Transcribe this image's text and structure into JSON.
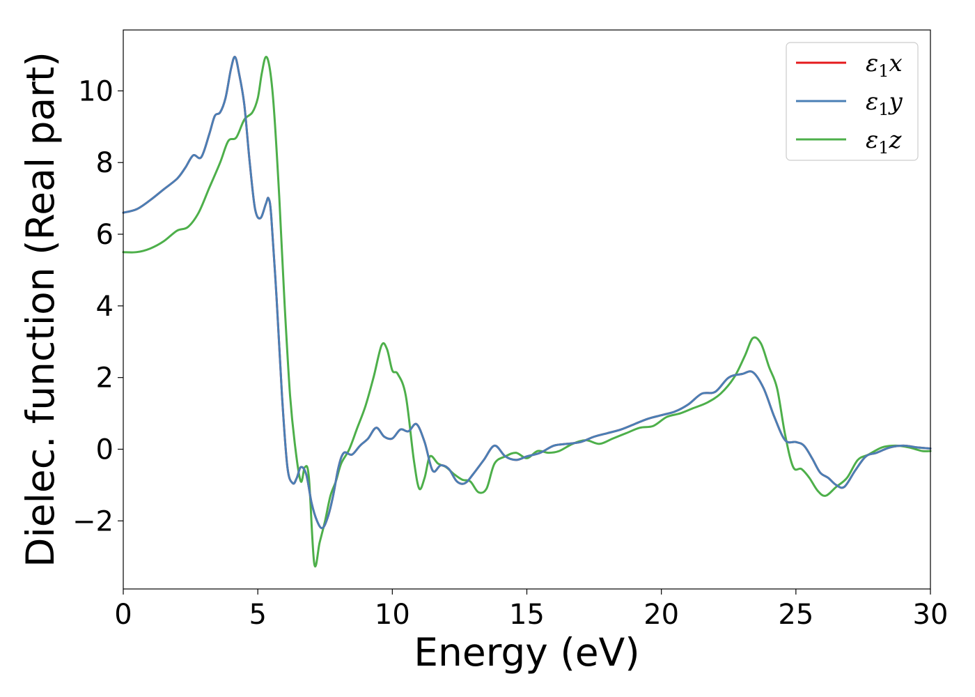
{
  "chart_data": {
    "type": "line",
    "xlabel": "Energy (eV)",
    "ylabel": "Dielec. function (Real part)",
    "xlim": [
      0,
      30
    ],
    "ylim": [
      -3.9,
      11.7
    ],
    "xticks": [
      0,
      5,
      10,
      15,
      20,
      25,
      30
    ],
    "xtick_labels": [
      "0",
      "5",
      "10",
      "15",
      "20",
      "25",
      "30"
    ],
    "yticks": [
      -2,
      0,
      2,
      4,
      6,
      8,
      10
    ],
    "ytick_labels": [
      "−2",
      "0",
      "2",
      "4",
      "6",
      "8",
      "10"
    ],
    "grid": false,
    "legend_position": "top-right",
    "series": [
      {
        "name": "ε₁x",
        "legend_main": "ε",
        "legend_sub": "1",
        "legend_var": "x",
        "color": "#e41a1c",
        "x": [
          0,
          0.5,
          1.0,
          1.5,
          2.0,
          2.3,
          2.6,
          2.9,
          3.2,
          3.4,
          3.6,
          3.8,
          4.0,
          4.15,
          4.3,
          4.5,
          4.7,
          4.9,
          5.1,
          5.3,
          5.4,
          5.5,
          5.7,
          5.9,
          6.1,
          6.3,
          6.45,
          6.6,
          6.8,
          7.0,
          7.2,
          7.4,
          7.6,
          7.8,
          8.0,
          8.2,
          8.5,
          8.8,
          9.1,
          9.4,
          9.7,
          10.0,
          10.3,
          10.6,
          10.9,
          11.2,
          11.5,
          11.8,
          12.1,
          12.4,
          12.7,
          13.0,
          13.4,
          13.8,
          14.2,
          14.6,
          15.0,
          15.5,
          16.0,
          16.5,
          17.0,
          17.5,
          18.0,
          18.5,
          19.0,
          19.5,
          20.0,
          20.5,
          21.0,
          21.5,
          22.0,
          22.5,
          23.0,
          23.4,
          23.8,
          24.2,
          24.6,
          25.0,
          25.3,
          25.6,
          25.9,
          26.2,
          26.5,
          26.8,
          27.2,
          27.6,
          28.0,
          28.5,
          29.0,
          29.5,
          30.0
        ],
        "y": [
          6.6,
          6.7,
          6.95,
          7.25,
          7.55,
          7.85,
          8.2,
          8.15,
          8.8,
          9.3,
          9.4,
          9.8,
          10.6,
          10.95,
          10.5,
          9.6,
          8.0,
          6.7,
          6.45,
          6.85,
          7.0,
          6.5,
          4.2,
          1.5,
          -0.5,
          -0.95,
          -0.8,
          -0.5,
          -0.7,
          -1.5,
          -2.0,
          -2.2,
          -1.9,
          -1.3,
          -0.5,
          -0.1,
          -0.15,
          0.1,
          0.3,
          0.6,
          0.35,
          0.3,
          0.55,
          0.5,
          0.7,
          0.2,
          -0.6,
          -0.45,
          -0.55,
          -0.9,
          -0.95,
          -0.7,
          -0.3,
          0.1,
          -0.2,
          -0.3,
          -0.2,
          -0.1,
          0.1,
          0.15,
          0.2,
          0.35,
          0.45,
          0.55,
          0.7,
          0.85,
          0.95,
          1.05,
          1.25,
          1.55,
          1.6,
          2.0,
          2.1,
          2.15,
          1.7,
          0.9,
          0.25,
          0.2,
          0.1,
          -0.25,
          -0.65,
          -0.8,
          -1.0,
          -1.05,
          -0.6,
          -0.2,
          -0.1,
          0.05,
          0.1,
          0.05,
          0.02
        ]
      },
      {
        "name": "ε₁y",
        "legend_main": "ε",
        "legend_sub": "1",
        "legend_var": "y",
        "color": "#4a7fb5",
        "x": [
          0,
          0.5,
          1.0,
          1.5,
          2.0,
          2.3,
          2.6,
          2.9,
          3.2,
          3.4,
          3.6,
          3.8,
          4.0,
          4.15,
          4.3,
          4.5,
          4.7,
          4.9,
          5.1,
          5.3,
          5.4,
          5.5,
          5.7,
          5.9,
          6.1,
          6.3,
          6.45,
          6.6,
          6.8,
          7.0,
          7.2,
          7.4,
          7.6,
          7.8,
          8.0,
          8.2,
          8.5,
          8.8,
          9.1,
          9.4,
          9.7,
          10.0,
          10.3,
          10.6,
          10.9,
          11.2,
          11.5,
          11.8,
          12.1,
          12.4,
          12.7,
          13.0,
          13.4,
          13.8,
          14.2,
          14.6,
          15.0,
          15.5,
          16.0,
          16.5,
          17.0,
          17.5,
          18.0,
          18.5,
          19.0,
          19.5,
          20.0,
          20.5,
          21.0,
          21.5,
          22.0,
          22.5,
          23.0,
          23.4,
          23.8,
          24.2,
          24.6,
          25.0,
          25.3,
          25.6,
          25.9,
          26.2,
          26.5,
          26.8,
          27.2,
          27.6,
          28.0,
          28.5,
          29.0,
          29.5,
          30.0
        ],
        "y": [
          6.6,
          6.7,
          6.95,
          7.25,
          7.55,
          7.85,
          8.2,
          8.15,
          8.8,
          9.3,
          9.4,
          9.8,
          10.6,
          10.95,
          10.5,
          9.6,
          8.0,
          6.7,
          6.45,
          6.85,
          7.0,
          6.5,
          4.2,
          1.5,
          -0.5,
          -0.95,
          -0.8,
          -0.5,
          -0.7,
          -1.5,
          -2.0,
          -2.2,
          -1.9,
          -1.3,
          -0.5,
          -0.1,
          -0.15,
          0.1,
          0.3,
          0.6,
          0.35,
          0.3,
          0.55,
          0.5,
          0.7,
          0.2,
          -0.6,
          -0.45,
          -0.55,
          -0.9,
          -0.95,
          -0.7,
          -0.3,
          0.1,
          -0.2,
          -0.3,
          -0.2,
          -0.1,
          0.1,
          0.15,
          0.2,
          0.35,
          0.45,
          0.55,
          0.7,
          0.85,
          0.95,
          1.05,
          1.25,
          1.55,
          1.6,
          2.0,
          2.1,
          2.15,
          1.7,
          0.9,
          0.25,
          0.2,
          0.1,
          -0.25,
          -0.65,
          -0.8,
          -1.0,
          -1.05,
          -0.6,
          -0.2,
          -0.1,
          0.05,
          0.1,
          0.05,
          0.02
        ]
      },
      {
        "name": "ε₁z",
        "legend_main": "ε",
        "legend_sub": "1",
        "legend_var": "z",
        "color": "#4daf4a",
        "x": [
          0,
          0.5,
          1.0,
          1.5,
          2.0,
          2.4,
          2.8,
          3.2,
          3.6,
          3.9,
          4.2,
          4.5,
          4.8,
          5.0,
          5.15,
          5.3,
          5.45,
          5.6,
          5.8,
          6.0,
          6.2,
          6.4,
          6.6,
          6.75,
          6.9,
          7.1,
          7.3,
          7.5,
          7.7,
          7.9,
          8.1,
          8.4,
          8.7,
          9.0,
          9.3,
          9.6,
          9.8,
          10.0,
          10.2,
          10.5,
          10.8,
          11.0,
          11.2,
          11.4,
          11.7,
          12.0,
          12.3,
          12.6,
          12.9,
          13.2,
          13.5,
          13.8,
          14.2,
          14.6,
          15.0,
          15.4,
          15.8,
          16.2,
          16.7,
          17.2,
          17.7,
          18.2,
          18.7,
          19.2,
          19.7,
          20.2,
          20.7,
          21.2,
          21.7,
          22.2,
          22.7,
          23.1,
          23.4,
          23.7,
          24.0,
          24.3,
          24.6,
          24.9,
          25.2,
          25.5,
          25.8,
          26.1,
          26.5,
          26.9,
          27.3,
          27.7,
          28.2,
          28.7,
          29.2,
          29.7,
          30.0
        ],
        "y": [
          5.5,
          5.5,
          5.6,
          5.8,
          6.1,
          6.2,
          6.6,
          7.3,
          8.0,
          8.6,
          8.7,
          9.2,
          9.4,
          9.8,
          10.5,
          10.95,
          10.6,
          9.5,
          7.0,
          4.0,
          1.5,
          0.0,
          -0.9,
          -0.5,
          -0.8,
          -3.2,
          -2.6,
          -2.0,
          -1.3,
          -0.9,
          -0.4,
          0.0,
          0.6,
          1.2,
          2.0,
          2.9,
          2.8,
          2.2,
          2.1,
          1.5,
          -0.3,
          -1.1,
          -0.8,
          -0.2,
          -0.4,
          -0.5,
          -0.7,
          -0.85,
          -0.9,
          -1.2,
          -1.1,
          -0.4,
          -0.2,
          -0.1,
          -0.25,
          -0.05,
          -0.1,
          -0.05,
          0.15,
          0.25,
          0.15,
          0.3,
          0.45,
          0.6,
          0.65,
          0.9,
          1.0,
          1.15,
          1.3,
          1.55,
          2.0,
          2.6,
          3.1,
          2.95,
          2.3,
          1.7,
          0.4,
          -0.5,
          -0.55,
          -0.8,
          -1.15,
          -1.3,
          -1.05,
          -0.8,
          -0.3,
          -0.15,
          0.05,
          0.1,
          0.05,
          -0.05,
          -0.05
        ]
      }
    ]
  }
}
